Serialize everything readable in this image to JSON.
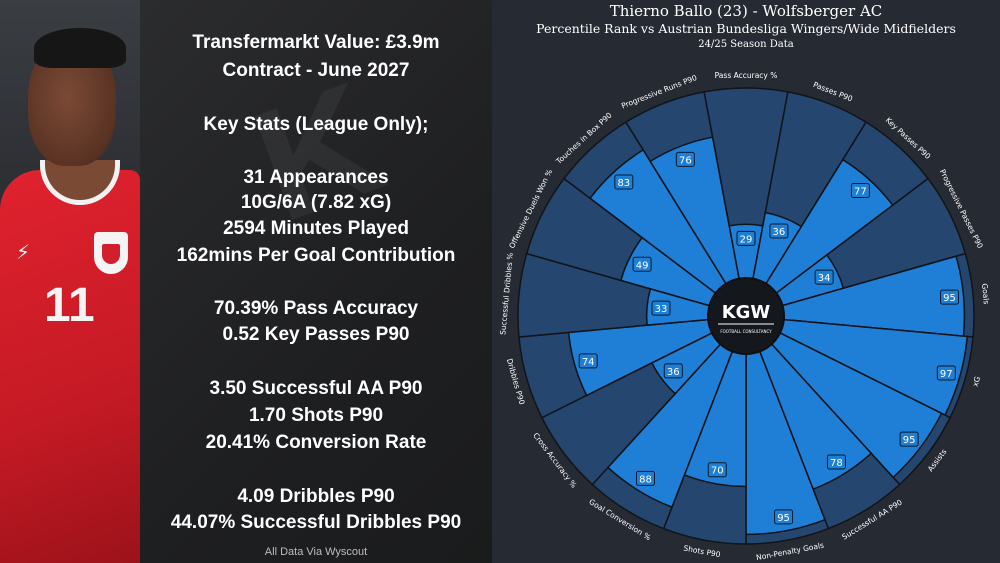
{
  "stats": {
    "value": "Transfermarkt Value: £3.9m",
    "contract": "Contract - June 2027",
    "key_stats_heading": "Key Stats (League Only);",
    "group1": [
      "31 Appearances",
      "10G/6A (7.82 xG)",
      "2594 Minutes Played",
      "162mins Per Goal Contribution"
    ],
    "group2": [
      "70.39% Pass Accuracy",
      "0.52 Key Passes P90"
    ],
    "group3": [
      "3.50 Successful AA P90",
      "1.70 Shots P90",
      "20.41% Conversion Rate"
    ],
    "group4": [
      "4.09 Dribbles P90",
      "44.07% Successful Dribbles P90"
    ],
    "source": "All Data Via Wyscout"
  },
  "photo": {
    "shirt_number": "11"
  },
  "center_logo": {
    "text": "KGW",
    "subtext": "FOOTBALL CONSULTANCY"
  },
  "colors": {
    "panel_bg": "#262a33",
    "slice_bg": "#24466f",
    "slice_fill": "#1f7fd6",
    "slice_edge": "#111418",
    "label_box": "#1e7fd4"
  },
  "chart_data": {
    "type": "radial-bar",
    "title": "Thierno Ballo (23) - Wolfsberger AC",
    "subtitle": "Percentile Rank vs Austrian Bundesliga Wingers/Wide Midfielders",
    "season": "24/25 Season Data",
    "range": [
      0,
      100
    ],
    "categories": [
      "Pass Accuracy %",
      "Passes P90",
      "Key Passes P90",
      "Progressive Passes P90",
      "Goals",
      "xG",
      "Assists",
      "Successful AA P90",
      "Non-Penalty Goals",
      "Shots P90",
      "Goal Conversion %",
      "Cross Accuracy %",
      "Dribbles P90",
      "Successful Dribbles %",
      "Offensive Duels Won %",
      "Touches in Box P90",
      "Progressive Runs P90"
    ],
    "values": [
      29,
      36,
      77,
      34,
      95,
      97,
      95,
      78,
      95,
      70,
      88,
      36,
      74,
      33,
      49,
      83,
      76
    ]
  }
}
